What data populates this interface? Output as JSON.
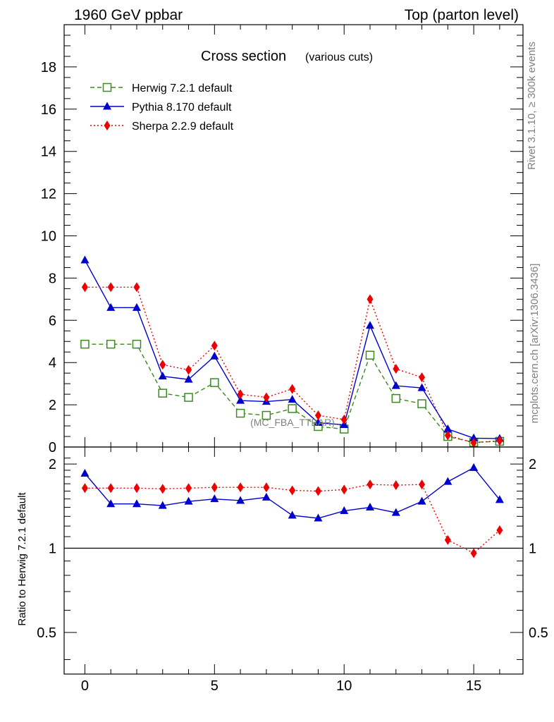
{
  "header": {
    "left": "1960 GeV ppbar",
    "right": "Top (parton level)"
  },
  "side_labels": {
    "rivet": "Rivet 3.1.10, ≥ 300k events",
    "mcplots": "mcplots.cern.ch [arXiv:1306.3436]"
  },
  "watermark": "(MC_FBA_TTBAR)",
  "chart_data": {
    "type": "line",
    "title": "Cross section",
    "subtitle": "(various cuts)",
    "x": [
      0,
      1,
      2,
      3,
      4,
      5,
      6,
      7,
      8,
      9,
      10,
      11,
      12,
      13,
      14,
      15,
      16
    ],
    "xlim": [
      -0.8,
      16.9
    ],
    "ylim": [
      0,
      20
    ],
    "xticks": [
      "0",
      "5",
      "10",
      "15"
    ],
    "yticks": [
      "0",
      "2",
      "4",
      "6",
      "8",
      "10",
      "12",
      "14",
      "16",
      "18"
    ],
    "legend_position": "top-left",
    "series": [
      {
        "name": "Herwig 7.2.1 default",
        "color": "#3a8a1e",
        "line": "dashed",
        "marker": "open-square",
        "values": [
          4.87,
          4.87,
          4.87,
          2.55,
          2.35,
          3.05,
          1.6,
          1.5,
          1.82,
          0.97,
          0.85,
          4.35,
          2.3,
          2.05,
          0.5,
          0.22,
          0.27
        ]
      },
      {
        "name": "Pythia 8.170 default",
        "color": "#0000cc",
        "line": "solid",
        "marker": "filled-triangle",
        "values": [
          8.85,
          6.6,
          6.6,
          3.35,
          3.2,
          4.3,
          2.2,
          2.15,
          2.25,
          1.15,
          1.05,
          5.75,
          2.9,
          2.8,
          0.85,
          0.42,
          0.4
        ]
      },
      {
        "name": "Sherpa 2.2.9 default",
        "color": "#ee0000",
        "line": "dotted",
        "marker": "filled-diamond",
        "values": [
          7.57,
          7.57,
          7.57,
          3.9,
          3.65,
          4.8,
          2.5,
          2.35,
          2.75,
          1.5,
          1.3,
          7.0,
          3.7,
          3.3,
          0.55,
          0.2,
          0.3
        ]
      }
    ],
    "ratio": {
      "ylabel": "Ratio to Herwig 7.2.1 default",
      "ylim": [
        0.355,
        2.3
      ],
      "yticks": [
        "0.5",
        "1",
        "2"
      ],
      "reference": 1,
      "series": [
        {
          "color": "#0000cc",
          "marker": "filled-triangle",
          "line": "solid",
          "values": [
            1.85,
            1.44,
            1.44,
            1.42,
            1.47,
            1.5,
            1.48,
            1.52,
            1.31,
            1.28,
            1.36,
            1.4,
            1.34,
            1.47,
            1.73,
            1.94,
            1.49
          ]
        },
        {
          "color": "#ee0000",
          "marker": "filled-diamond",
          "line": "dotted",
          "values": [
            1.64,
            1.64,
            1.64,
            1.63,
            1.64,
            1.65,
            1.65,
            1.65,
            1.61,
            1.6,
            1.62,
            1.69,
            1.68,
            1.69,
            1.07,
            0.96,
            1.16
          ]
        }
      ]
    }
  }
}
